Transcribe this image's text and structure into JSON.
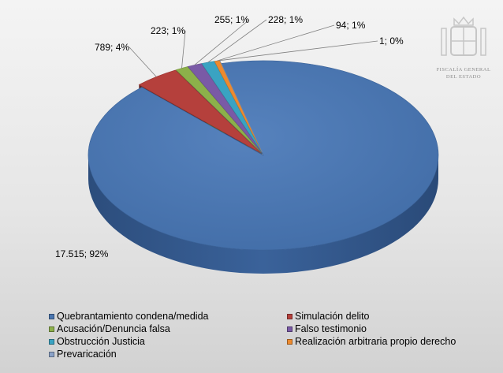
{
  "chart_data": {
    "type": "pie",
    "title": "",
    "categories": [
      "Quebrantamiento condena/medida",
      "Simulación delito",
      "Acusación/Denuncia falsa",
      "Falso testimonio",
      "Obstrucción Justicia",
      "Realización arbitraria propio derecho",
      "Prevaricación"
    ],
    "values": [
      17515,
      789,
      223,
      255,
      228,
      94,
      1
    ],
    "data_labels": [
      "17.515; 92%",
      "789; 4%",
      "223; 1%",
      "255; 1%",
      "228; 1%",
      "94; 1%",
      "1; 0%"
    ],
    "colors": [
      "#4a76b0",
      "#b5403c",
      "#8cb04a",
      "#7a5aa6",
      "#3aa3c2",
      "#ee8a2e",
      "#8aa2c8"
    ],
    "legend_position": "bottom"
  },
  "logo": {
    "text_line1": "FISCALÍA GENERAL",
    "text_line2": "DEL ESTADO"
  }
}
